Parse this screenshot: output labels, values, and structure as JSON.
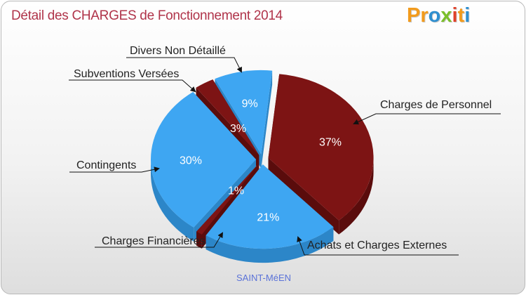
{
  "header": {
    "title": "Détail des CHARGES de Fonctionnement 2014"
  },
  "logo": {
    "parts": [
      "Pr",
      "o",
      "x",
      "i",
      "t",
      "i"
    ]
  },
  "footer": {
    "city": "SAINT-MéEN"
  },
  "colors": {
    "blue": "#3ea6f2",
    "blue_side": "#2c86c8",
    "red": "#7d1414",
    "red_side": "#5a0c0c",
    "title": "#b0344a"
  },
  "chart_data": {
    "type": "pie",
    "title": "Détail des CHARGES de Fonctionnement 2014",
    "subtitle": "SAINT-MéEN",
    "exploded": true,
    "three_d": true,
    "slices": [
      {
        "label": "Charges de Personnel",
        "value": 37,
        "display": "37%",
        "color": "#7d1414"
      },
      {
        "label": "Achats et Charges Externes",
        "value": 21,
        "display": "21%",
        "color": "#3ea6f2"
      },
      {
        "label": "Charges Financières",
        "value": 1,
        "display": "1%",
        "color": "#7d1414"
      },
      {
        "label": "Contingents",
        "value": 30,
        "display": "30%",
        "color": "#3ea6f2"
      },
      {
        "label": "Subventions Versées",
        "value": 3,
        "display": "3%",
        "color": "#7d1414"
      },
      {
        "label": "Divers Non Détaillé",
        "value": 9,
        "display": "9%",
        "color": "#3ea6f2"
      }
    ]
  }
}
